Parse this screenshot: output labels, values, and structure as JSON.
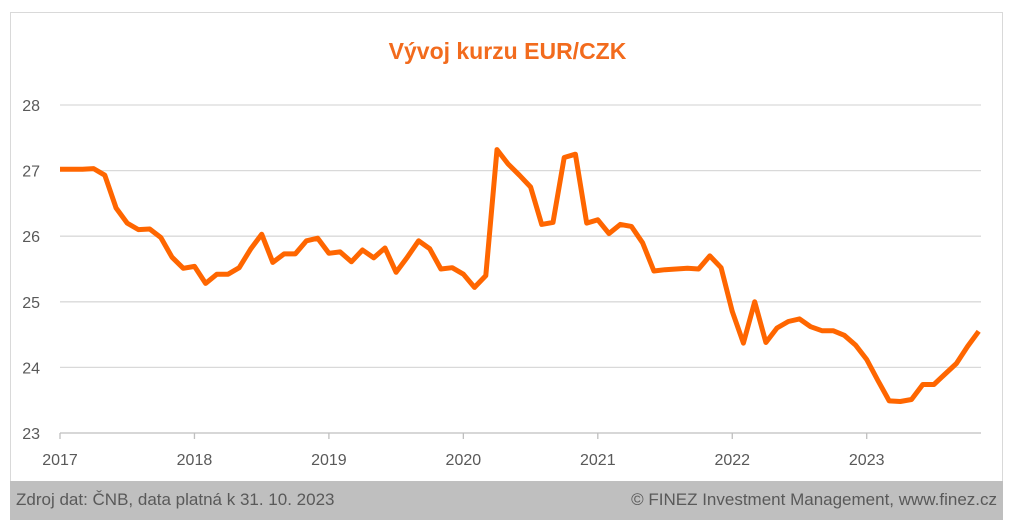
{
  "chart_data": {
    "type": "line",
    "title": "Vývoj kurzu EUR/CZK",
    "xlabel": "",
    "ylabel": "",
    "ylim": [
      23,
      28
    ],
    "yticks": [
      23,
      24,
      25,
      26,
      27,
      28
    ],
    "xlim": [
      2017.0,
      2023.85
    ],
    "xticks": [
      "2017",
      "2018",
      "2019",
      "2020",
      "2021",
      "2022",
      "2023"
    ],
    "grid": "horizontal",
    "line_color": "#ff6600",
    "title_color": "#f26b1d",
    "series": [
      {
        "x": [
          2017.0,
          2017.083,
          2017.167,
          2017.25,
          2017.333,
          2017.417,
          2017.5,
          2017.583,
          2017.667,
          2017.75,
          2017.833,
          2017.917,
          2018.0,
          2018.083,
          2018.167,
          2018.25,
          2018.333,
          2018.417,
          2018.5,
          2018.583,
          2018.667,
          2018.75,
          2018.833,
          2018.917,
          2019.0,
          2019.083,
          2019.167,
          2019.25,
          2019.333,
          2019.417,
          2019.5,
          2019.583,
          2019.667,
          2019.75,
          2019.833,
          2019.917,
          2020.0,
          2020.083,
          2020.167,
          2020.25,
          2020.333,
          2020.417,
          2020.5,
          2020.583,
          2020.667,
          2020.75,
          2020.833,
          2020.917,
          2021.0,
          2021.083,
          2021.167,
          2021.25,
          2021.333,
          2021.417,
          2021.5,
          2021.583,
          2021.667,
          2021.75,
          2021.833,
          2021.917,
          2022.0,
          2022.083,
          2022.167,
          2022.25,
          2022.333,
          2022.417,
          2022.5,
          2022.583,
          2022.667,
          2022.75,
          2022.833,
          2022.917,
          2023.0,
          2023.083,
          2023.167,
          2023.25,
          2023.333,
          2023.417,
          2023.5,
          2023.583,
          2023.667,
          2023.75,
          2023.833
        ],
        "values": [
          27.02,
          27.02,
          27.02,
          27.03,
          26.93,
          26.43,
          26.2,
          26.1,
          26.11,
          25.98,
          25.68,
          25.51,
          25.54,
          25.28,
          25.42,
          25.42,
          25.52,
          25.8,
          26.03,
          25.6,
          25.73,
          25.73,
          25.93,
          25.97,
          25.74,
          25.76,
          25.61,
          25.79,
          25.67,
          25.82,
          25.45,
          25.68,
          25.93,
          25.81,
          25.5,
          25.52,
          25.42,
          25.22,
          25.4,
          27.32,
          27.1,
          26.93,
          26.75,
          26.18,
          26.21,
          27.2,
          27.25,
          26.2,
          26.25,
          26.04,
          26.18,
          26.15,
          25.9,
          25.47,
          25.49,
          25.5,
          25.51,
          25.5,
          25.7,
          25.52,
          24.85,
          24.37,
          25.0,
          24.38,
          24.6,
          24.7,
          24.74,
          24.62,
          24.56,
          24.56,
          24.49,
          24.34,
          24.12,
          23.8,
          23.49,
          23.48,
          23.51,
          23.74,
          23.74,
          23.9,
          24.06,
          24.32,
          24.55
        ]
      }
    ]
  },
  "footer": {
    "source": "Zdroj dat: ČNB, data platná k 31. 10. 2023",
    "copyright": "© FINEZ Investment Management, www.finez.cz"
  }
}
